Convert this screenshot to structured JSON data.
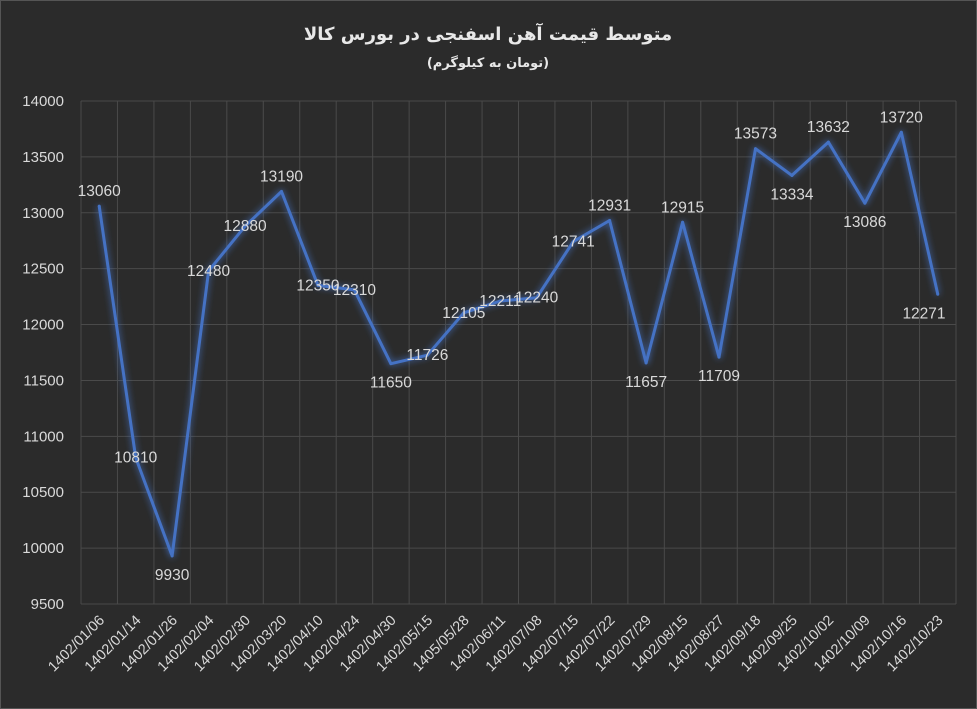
{
  "chart_data": {
    "type": "line",
    "title": "متوسط قیمت آهن اسفنجی در بورس کالا",
    "subtitle": "(تومان به کیلوگرم)",
    "xlabel": "",
    "ylabel": "",
    "categories": [
      "1402/01/06",
      "1402/01/14",
      "1402/01/26",
      "1402/02/04",
      "1402/02/30",
      "1402/03/20",
      "1402/04/10",
      "1402/04/24",
      "1402/04/30",
      "1402/05/15",
      "1405/05/28",
      "1402/06/11",
      "1402/07/08",
      "1402/07/15",
      "1402/07/22",
      "1402/07/29",
      "1402/08/15",
      "1402/08/27",
      "1402/09/18",
      "1402/09/25",
      "1402/10/02",
      "1402/10/09",
      "1402/10/16",
      "1402/10/23"
    ],
    "series": [
      {
        "values": [
          13060,
          10810,
          9930,
          12480,
          12880,
          13190,
          12350,
          12310,
          11650,
          11726,
          12105,
          12211,
          12240,
          12741,
          12931,
          11657,
          12915,
          11709,
          13573,
          13334,
          13632,
          13086,
          13720,
          12271
        ]
      }
    ],
    "ylim": [
      9500,
      14000
    ],
    "yticks": [
      9500,
      10000,
      10500,
      11000,
      11500,
      12000,
      12500,
      13000,
      13500,
      14000
    ],
    "grid": true,
    "legend": "none",
    "line_color": "#4472c4",
    "background_color": "#2b2b2b"
  }
}
